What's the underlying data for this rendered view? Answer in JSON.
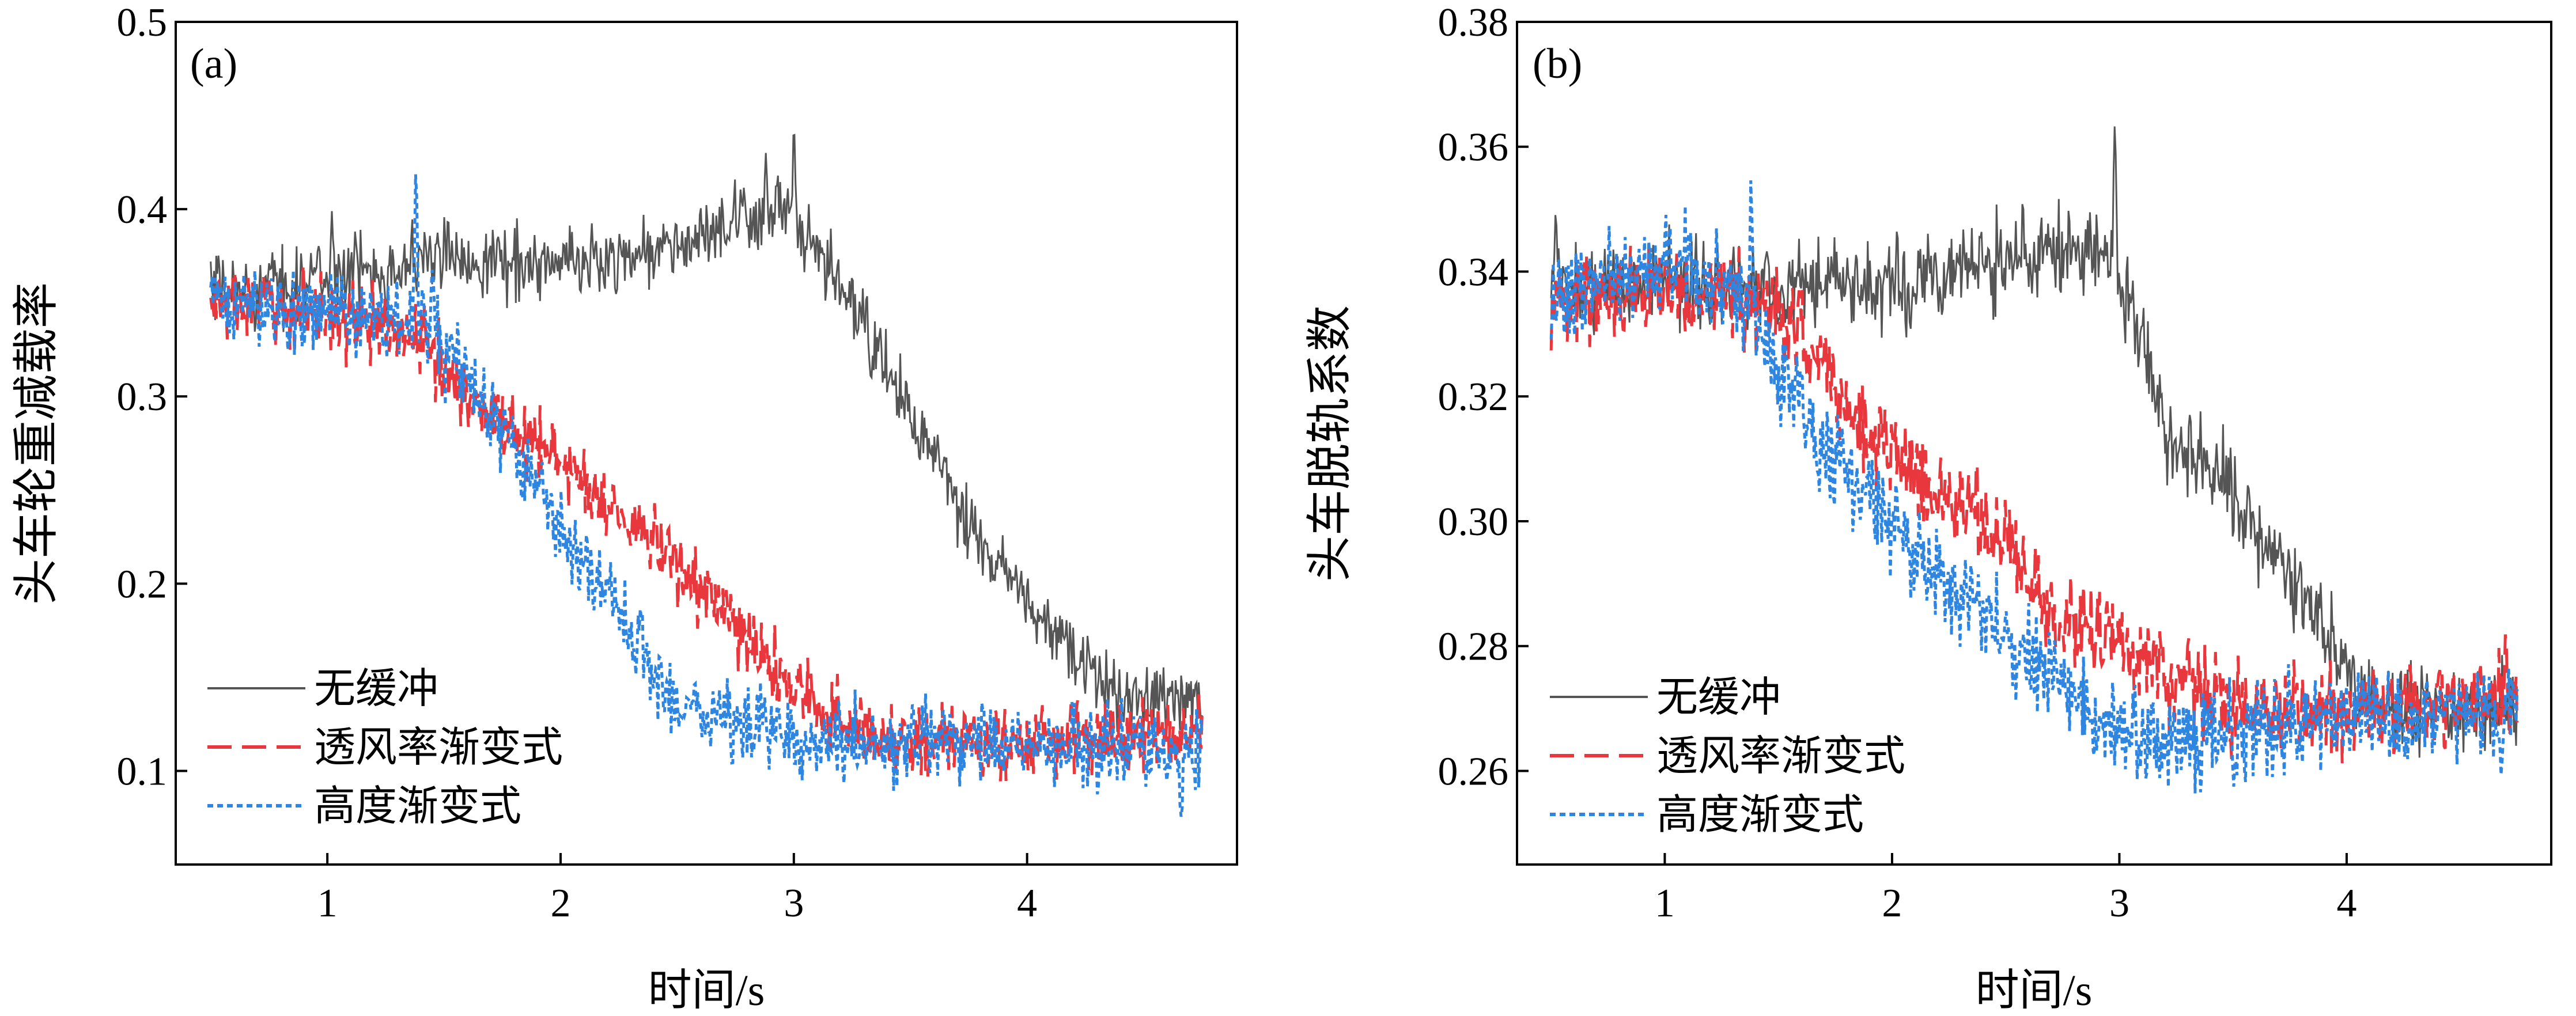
{
  "figure": {
    "xlabel": "时间/s"
  },
  "legend": [
    {
      "label": "无缓冲",
      "color": "#555555",
      "dash": ""
    },
    {
      "label": "透风率渐变式",
      "color": "#e8383d",
      "dash": "42,18"
    },
    {
      "label": "高度渐变式",
      "color": "#2f86e0",
      "dash": "10,7"
    }
  ],
  "chart_data": [
    {
      "type": "line",
      "panel_label": "(a)",
      "title": "",
      "xlabel": "时间/s",
      "ylabel": "头车轮重减载率",
      "xlim": [
        0.35,
        4.9
      ],
      "ylim": [
        0.05,
        0.5
      ],
      "x_ticks": [
        1,
        2,
        3,
        4
      ],
      "y_ticks": [
        0.1,
        0.2,
        0.3,
        0.4,
        0.5
      ],
      "y_tick_labels": [
        "0.1",
        "0.2",
        "0.3",
        "0.4",
        "0.5"
      ],
      "grid": false,
      "legend_position": "bottom-left",
      "x_range": [
        0.5,
        4.75
      ],
      "series": [
        {
          "name": "无缓冲",
          "color": "#555555",
          "noise": 0.012,
          "keypoints": [
            [
              0.5,
              0.355
            ],
            [
              0.8,
              0.36
            ],
            [
              1.3,
              0.37
            ],
            [
              1.5,
              0.375
            ],
            [
              2.0,
              0.37
            ],
            [
              2.5,
              0.38
            ],
            [
              2.95,
              0.4
            ],
            [
              3.05,
              0.38
            ],
            [
              3.2,
              0.36
            ],
            [
              3.5,
              0.29
            ],
            [
              3.8,
              0.22
            ],
            [
              4.0,
              0.19
            ],
            [
              4.2,
              0.16
            ],
            [
              4.4,
              0.14
            ],
            [
              4.75,
              0.14
            ]
          ],
          "peaks": [
            [
              3.0,
              0.45
            ],
            [
              1.02,
              0.4
            ],
            [
              2.88,
              0.43
            ]
          ]
        },
        {
          "name": "透风率渐变式",
          "color": "#e8383d",
          "noise": 0.012,
          "keypoints": [
            [
              0.5,
              0.35
            ],
            [
              1.0,
              0.345
            ],
            [
              1.4,
              0.33
            ],
            [
              1.6,
              0.3
            ],
            [
              2.0,
              0.265
            ],
            [
              2.5,
              0.21
            ],
            [
              2.8,
              0.17
            ],
            [
              3.0,
              0.145
            ],
            [
              3.2,
              0.125
            ],
            [
              3.5,
              0.115
            ],
            [
              4.0,
              0.115
            ],
            [
              4.75,
              0.12
            ]
          ],
          "peaks": [
            [
              2.3,
              0.22
            ],
            [
              2.55,
              0.21
            ]
          ]
        },
        {
          "name": "高度渐变式",
          "color": "#2f86e0",
          "noise": 0.013,
          "keypoints": [
            [
              0.5,
              0.35
            ],
            [
              1.0,
              0.345
            ],
            [
              1.38,
              0.34
            ],
            [
              1.55,
              0.32
            ],
            [
              1.8,
              0.27
            ],
            [
              2.0,
              0.23
            ],
            [
              2.2,
              0.19
            ],
            [
              2.35,
              0.165
            ],
            [
              2.5,
              0.135
            ],
            [
              2.8,
              0.125
            ],
            [
              3.2,
              0.115
            ],
            [
              4.0,
              0.115
            ],
            [
              4.75,
              0.11
            ]
          ],
          "peaks": [
            [
              1.38,
              0.43
            ],
            [
              1.45,
              0.37
            ],
            [
              4.66,
              0.075
            ]
          ]
        }
      ]
    },
    {
      "type": "line",
      "panel_label": "(b)",
      "title": "",
      "xlabel": "时间/s",
      "ylabel": "头车脱轨系数",
      "xlim": [
        0.35,
        4.9
      ],
      "ylim": [
        0.245,
        0.38
      ],
      "x_ticks": [
        1,
        2,
        3,
        4
      ],
      "y_ticks": [
        0.26,
        0.28,
        0.3,
        0.32,
        0.34,
        0.36,
        0.38
      ],
      "y_tick_labels": [
        "0.26",
        "0.28",
        "0.30",
        "0.32",
        "0.34",
        "0.36",
        "0.38"
      ],
      "grid": false,
      "legend_position": "bottom-left",
      "x_range": [
        0.5,
        4.75
      ],
      "series": [
        {
          "name": "无缓冲",
          "color": "#555555",
          "noise": 0.0045,
          "keypoints": [
            [
              0.5,
              0.338
            ],
            [
              1.0,
              0.338
            ],
            [
              1.5,
              0.338
            ],
            [
              2.0,
              0.338
            ],
            [
              2.5,
              0.342
            ],
            [
              2.9,
              0.345
            ],
            [
              3.05,
              0.335
            ],
            [
              3.2,
              0.315
            ],
            [
              3.5,
              0.305
            ],
            [
              3.8,
              0.29
            ],
            [
              4.0,
              0.275
            ],
            [
              4.2,
              0.27
            ],
            [
              4.75,
              0.27
            ]
          ],
          "peaks": [
            [
              2.98,
              0.365
            ],
            [
              0.52,
              0.35
            ]
          ]
        },
        {
          "name": "透风率渐变式",
          "color": "#e8383d",
          "noise": 0.0045,
          "keypoints": [
            [
              0.5,
              0.335
            ],
            [
              1.0,
              0.338
            ],
            [
              1.4,
              0.335
            ],
            [
              1.6,
              0.33
            ],
            [
              1.8,
              0.318
            ],
            [
              2.0,
              0.312
            ],
            [
              2.2,
              0.305
            ],
            [
              2.5,
              0.298
            ],
            [
              2.7,
              0.285
            ],
            [
              3.0,
              0.28
            ],
            [
              3.2,
              0.275
            ],
            [
              3.6,
              0.27
            ],
            [
              4.2,
              0.27
            ],
            [
              4.75,
              0.272
            ]
          ],
          "peaks": [
            [
              4.7,
              0.283
            ]
          ]
        },
        {
          "name": "高度渐变式",
          "color": "#2f86e0",
          "noise": 0.0045,
          "keypoints": [
            [
              0.5,
              0.335
            ],
            [
              1.0,
              0.342
            ],
            [
              1.3,
              0.338
            ],
            [
              1.5,
              0.325
            ],
            [
              1.7,
              0.312
            ],
            [
              1.9,
              0.305
            ],
            [
              2.2,
              0.29
            ],
            [
              2.5,
              0.283
            ],
            [
              2.7,
              0.275
            ],
            [
              2.9,
              0.268
            ],
            [
              3.1,
              0.265
            ],
            [
              3.5,
              0.266
            ],
            [
              4.0,
              0.268
            ],
            [
              4.75,
              0.27
            ]
          ],
          "peaks": [
            [
              1.38,
              0.358
            ],
            [
              4.68,
              0.258
            ]
          ]
        }
      ]
    }
  ]
}
